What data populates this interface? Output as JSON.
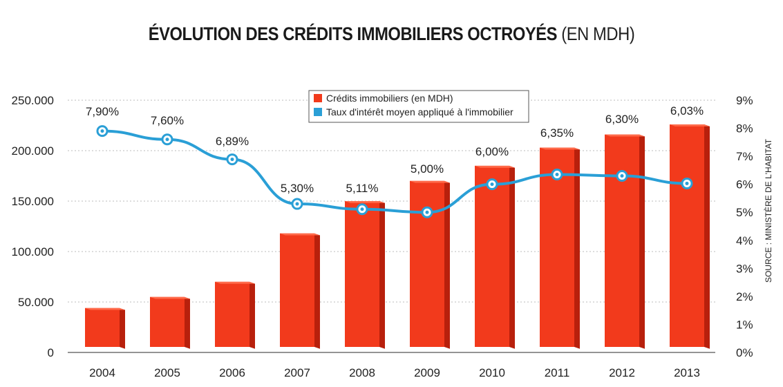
{
  "title": {
    "main": "ÉVOLUTION DES CRÉDITS IMMOBILIERS OCTROYÉS",
    "unit": "(EN MDH)"
  },
  "source": "SOURCE : MINISTÈRE DE L'HABITAT",
  "colors": {
    "bar": "#f23a1c",
    "bar_side": "#b8200c",
    "bar_top": "#ff6a4a",
    "line": "#2a9fd6",
    "grid": "#bbbbbb"
  },
  "chart_data": {
    "type": "bar",
    "title": "ÉVOLUTION DES CRÉDITS IMMOBILIERS OCTROYÉS (EN MDH)",
    "categories": [
      "2004",
      "2005",
      "2006",
      "2007",
      "2008",
      "2009",
      "2010",
      "2011",
      "2012",
      "2013"
    ],
    "series": [
      {
        "name": "Crédits immobiliers (en MDH)",
        "type": "bar",
        "axis": "left",
        "values": [
          44000,
          55000,
          70000,
          118000,
          150000,
          170000,
          185000,
          203000,
          216000,
          226000
        ]
      },
      {
        "name": "Taux d'intérêt moyen appliqué à l'immobilier",
        "type": "line",
        "axis": "right",
        "values": [
          7.9,
          7.6,
          6.89,
          5.3,
          5.11,
          5.0,
          6.0,
          6.35,
          6.3,
          6.03
        ],
        "labels": [
          "7,90%",
          "7,60%",
          "6,89%",
          "5,30%",
          "5,11%",
          "5,00%",
          "6,00%",
          "6,35%",
          "6,30%",
          "6,03%"
        ]
      }
    ],
    "left_axis": {
      "ylim": [
        0,
        250000
      ],
      "ticks": [
        "0",
        "50.000",
        "100.000",
        "150.000",
        "200.000",
        "250.000"
      ]
    },
    "right_axis": {
      "ylim": [
        0,
        9
      ],
      "ticks": [
        "0%",
        "1%",
        "2%",
        "3%",
        "4%",
        "5%",
        "6%",
        "7%",
        "8%",
        "9%"
      ]
    },
    "legend_position": "top-center"
  }
}
